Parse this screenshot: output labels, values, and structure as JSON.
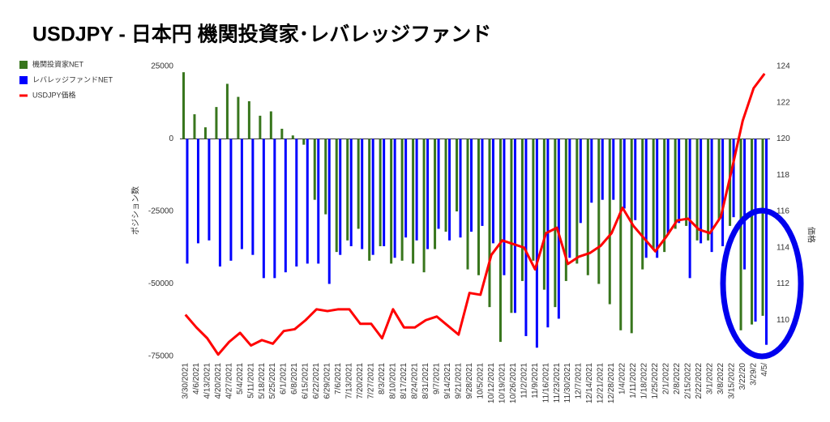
{
  "chart_data": {
    "type": "bar-line",
    "title": "USDJPY - 日本円 機関投資家･レバレッジファンド",
    "y_label": "ポジション数",
    "y2_label": "価格",
    "categories": [
      "3/30/2021",
      "4/6/2021",
      "4/13/2021",
      "4/20/2021",
      "4/27/2021",
      "5/4/2021",
      "5/11/2021",
      "5/18/2021",
      "5/25/2021",
      "6/1/2021",
      "6/8/2021",
      "6/15/2021",
      "6/22/2021",
      "6/29/2021",
      "7/6/2021",
      "7/13/2021",
      "7/20/2021",
      "7/27/2021",
      "8/3/2021",
      "8/10/2021",
      "8/17/2021",
      "8/24/2021",
      "8/31/2021",
      "9/7/2021",
      "9/14/2021",
      "9/21/2021",
      "9/28/2021",
      "10/5/2021",
      "10/12/2021",
      "10/19/2021",
      "10/26/2021",
      "11/2/2021",
      "11/9/2021",
      "11/16/2021",
      "11/23/2021",
      "11/30/2021",
      "12/7/2021",
      "12/14/2021",
      "12/21/2021",
      "12/28/2021",
      "1/4/2022",
      "1/11/2022",
      "1/18/2022",
      "1/25/2022",
      "2/1/2022",
      "2/8/2022",
      "2/15/2022",
      "2/22/2022",
      "3/1/2022",
      "3/8/2022",
      "3/15/2022",
      "3/22/20",
      "3/29/2",
      "4/5/"
    ],
    "series": [
      {
        "name": "機関投資家NET",
        "color": "#38761d",
        "kind": "bar",
        "values": [
          23000,
          8500,
          4000,
          11000,
          19000,
          14500,
          13000,
          8000,
          9500,
          3500,
          1200,
          -2000,
          -21000,
          -26000,
          -39000,
          -35000,
          -31000,
          -42000,
          -37000,
          -43000,
          -42000,
          -43000,
          -46000,
          -38000,
          -32000,
          -25000,
          -45000,
          -47000,
          -58000,
          -70000,
          -60000,
          -49000,
          -42000,
          -52000,
          -58000,
          -49000,
          -43000,
          -47000,
          -50000,
          -57000,
          -66000,
          -67000,
          -45000,
          -38000,
          -39000,
          -31000,
          -30000,
          -35000,
          -35000,
          -28000,
          -30000,
          -66000,
          -64000,
          -61000
        ]
      },
      {
        "name": "レバレッジファンドNET",
        "color": "#0000ff",
        "kind": "bar",
        "values": [
          -43000,
          -36000,
          -35000,
          -44000,
          -42000,
          -38000,
          -40000,
          -48000,
          -48000,
          -46000,
          -44000,
          -43000,
          -43000,
          -50000,
          -40000,
          -37000,
          -38000,
          -40000,
          -37000,
          -41000,
          -34000,
          -35000,
          -38000,
          -31000,
          -35000,
          -34000,
          -32000,
          -30000,
          -36000,
          -47000,
          -60000,
          -68000,
          -72000,
          -65000,
          -62000,
          -41000,
          -29000,
          -22000,
          -21000,
          -21000,
          -24000,
          -28000,
          -41000,
          -41000,
          -33000,
          -29000,
          -48000,
          -36000,
          -39000,
          -37000,
          -27000,
          -45000,
          -63000,
          -71000
        ]
      },
      {
        "name": "USDJPY価格",
        "color": "#ff0000",
        "kind": "line",
        "axis": "y2",
        "values": [
          110.3,
          109.6,
          109,
          108.1,
          108.8,
          109.3,
          108.6,
          108.9,
          108.7,
          109.4,
          109.5,
          110,
          110.6,
          110.5,
          110.6,
          110.6,
          109.8,
          109.8,
          109,
          110.6,
          109.6,
          109.6,
          110,
          110.2,
          109.7,
          109.2,
          111.5,
          111.4,
          113.6,
          114.4,
          114.2,
          114,
          112.8,
          114.8,
          115.1,
          113.1,
          113.5,
          113.7,
          114.1,
          114.8,
          116.2,
          115.2,
          114.5,
          113.8,
          114.6,
          115.5,
          115.6,
          115,
          114.8,
          115.7,
          118.3,
          121,
          122.8,
          123.6
        ]
      }
    ],
    "ylim": [
      -75000,
      25000
    ],
    "yticks": [
      -75000,
      -50000,
      -25000,
      0,
      25000
    ],
    "y2lim": [
      108,
      124
    ],
    "y2ticks": [
      110,
      112,
      114,
      116,
      118,
      120,
      122,
      124
    ],
    "legend": "top-left"
  }
}
